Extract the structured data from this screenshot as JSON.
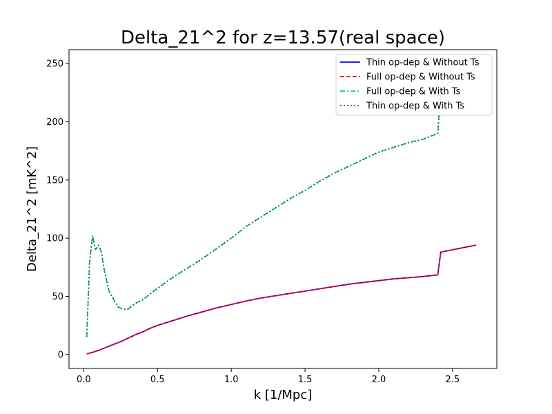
{
  "chart_data": {
    "type": "line",
    "title": "Delta_21^2 for z=13.57(real space)",
    "xlabel": "k [1/Mpc]",
    "ylabel": "Delta_21^2 [mK^2]",
    "xlim": [
      -0.1,
      2.8
    ],
    "ylim": [
      -12,
      262
    ],
    "xticks": [
      0.0,
      0.5,
      1.0,
      1.5,
      2.0,
      2.5
    ],
    "xtick_labels": [
      "0.0",
      "0.5",
      "1.0",
      "1.5",
      "2.0",
      "2.5"
    ],
    "yticks": [
      0,
      50,
      100,
      150,
      200,
      250
    ],
    "ytick_labels": [
      "0",
      "50",
      "100",
      "150",
      "200",
      "250"
    ],
    "grid": false,
    "legend_position": "top-right",
    "series": [
      {
        "name": "Thin op-dep & Without Ts",
        "color": "#0000ff",
        "style": "solid",
        "x": [
          0.02,
          0.05,
          0.1,
          0.15,
          0.2,
          0.25,
          0.3,
          0.35,
          0.4,
          0.45,
          0.5,
          0.6,
          0.7,
          0.8,
          0.9,
          1.0,
          1.1,
          1.2,
          1.3,
          1.4,
          1.5,
          1.6,
          1.7,
          1.8,
          1.9,
          2.0,
          2.1,
          2.2,
          2.3,
          2.4,
          2.42,
          2.5,
          2.6,
          2.66
        ],
        "y": [
          0.5,
          1.5,
          3.5,
          6,
          8.5,
          11,
          14,
          17,
          19.5,
          22.5,
          25,
          29,
          33,
          36.5,
          40,
          43,
          46,
          48.5,
          50.5,
          52.5,
          54.5,
          56.5,
          58.5,
          60.5,
          62,
          63.5,
          65,
          66,
          67,
          68.5,
          88,
          90,
          92.5,
          94
        ]
      },
      {
        "name": "Full op-dep & Without Ts",
        "color": "#ff0000",
        "style": "dashed",
        "x": [
          0.02,
          0.05,
          0.1,
          0.15,
          0.2,
          0.25,
          0.3,
          0.35,
          0.4,
          0.45,
          0.5,
          0.6,
          0.7,
          0.8,
          0.9,
          1.0,
          1.1,
          1.2,
          1.3,
          1.4,
          1.5,
          1.6,
          1.7,
          1.8,
          1.9,
          2.0,
          2.1,
          2.2,
          2.3,
          2.4,
          2.42,
          2.5,
          2.6,
          2.66
        ],
        "y": [
          0.5,
          1.5,
          3.5,
          6,
          8.5,
          11,
          14,
          17,
          19.5,
          22.5,
          25,
          29,
          33,
          36.5,
          40,
          43,
          46,
          48.5,
          50.5,
          52.5,
          54.5,
          56.5,
          58.5,
          60.5,
          62,
          63.5,
          65,
          66,
          67,
          68.5,
          88,
          90,
          92.5,
          94
        ]
      },
      {
        "name": "Full op-dep & With Ts",
        "color": "#00bfbf",
        "style": "dashdot",
        "x": [
          0.02,
          0.04,
          0.06,
          0.08,
          0.1,
          0.12,
          0.14,
          0.17,
          0.2,
          0.23,
          0.26,
          0.3,
          0.35,
          0.4,
          0.45,
          0.5,
          0.6,
          0.7,
          0.8,
          0.9,
          1.0,
          1.1,
          1.2,
          1.3,
          1.4,
          1.5,
          1.6,
          1.7,
          1.8,
          1.9,
          2.0,
          2.1,
          2.2,
          2.3,
          2.4,
          2.42,
          2.5,
          2.6,
          2.66
        ],
        "y": [
          15,
          80,
          102,
          90,
          94,
          88,
          72,
          55,
          48,
          41,
          39,
          39,
          44,
          47,
          52,
          57,
          66,
          74,
          82,
          91,
          100,
          110,
          118,
          126,
          134,
          141,
          149,
          156,
          162,
          168,
          174,
          178,
          182,
          185,
          190,
          228,
          235,
          240,
          246
        ]
      },
      {
        "name": "Thin op-dep & With Ts",
        "color": "#008000",
        "style": "dotted",
        "x": [
          0.02,
          0.04,
          0.06,
          0.08,
          0.1,
          0.12,
          0.14,
          0.17,
          0.2,
          0.23,
          0.26,
          0.3,
          0.35,
          0.4,
          0.45,
          0.5,
          0.6,
          0.7,
          0.8,
          0.9,
          1.0,
          1.1,
          1.2,
          1.3,
          1.4,
          1.5,
          1.6,
          1.7,
          1.8,
          1.9,
          2.0,
          2.1,
          2.2,
          2.3,
          2.4,
          2.42,
          2.5,
          2.6,
          2.66
        ],
        "y": [
          15,
          80,
          102,
          90,
          94,
          88,
          72,
          55,
          48,
          41,
          39,
          39,
          44,
          47,
          52,
          57,
          66,
          74,
          82,
          91,
          100,
          110,
          118,
          126,
          134,
          141,
          149,
          156,
          162,
          168,
          174,
          178,
          182,
          185,
          190,
          228,
          235,
          240,
          246
        ]
      }
    ]
  }
}
